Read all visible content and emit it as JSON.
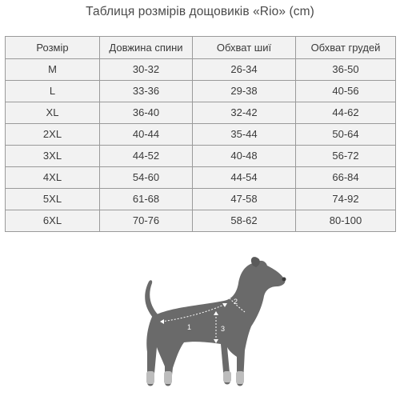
{
  "title": "Таблиця розмірів дощовиків «Rio» (cm)",
  "table": {
    "headers": [
      "Розмір",
      "Довжина спини",
      "Обхват шиї",
      "Обхват грудей"
    ],
    "rows": [
      [
        "M",
        "30-32",
        "26-34",
        "36-50"
      ],
      [
        "L",
        "33-36",
        "29-38",
        "40-56"
      ],
      [
        "XL",
        "36-40",
        "32-42",
        "44-62"
      ],
      [
        "2XL",
        "40-44",
        "35-44",
        "50-64"
      ],
      [
        "3XL",
        "44-52",
        "40-48",
        "56-72"
      ],
      [
        "4XL",
        "54-60",
        "44-54",
        "66-84"
      ],
      [
        "5XL",
        "61-68",
        "47-58",
        "74-92"
      ],
      [
        "6XL",
        "70-76",
        "58-62",
        "80-100"
      ]
    ]
  },
  "figure": {
    "icon": "dog-silhouette-icon",
    "markers": [
      "1",
      "2",
      "3"
    ],
    "colors": {
      "body": "#6a6a6a",
      "paws": "#bdbdbd",
      "lines": "#ffffff"
    }
  }
}
